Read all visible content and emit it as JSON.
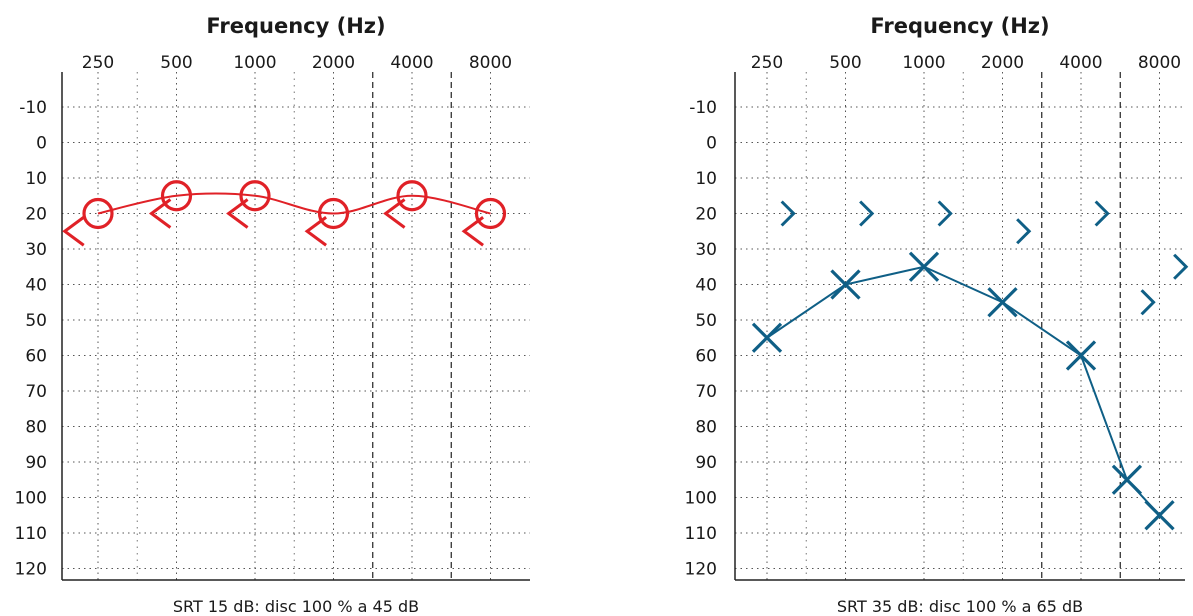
{
  "chart_data": [
    {
      "type": "scatter",
      "title": "Frequency (Hz)",
      "x_ticks": [
        "250",
        "500",
        "1000",
        "2000",
        "4000",
        "8000"
      ],
      "y_ticks": [
        "-10",
        "0",
        "10",
        "20",
        "30",
        "40",
        "50",
        "60",
        "70",
        "80",
        "90",
        "100",
        "110",
        "120"
      ],
      "ylim": [
        -15,
        120
      ],
      "y_inverted": true,
      "grid": true,
      "caption": "SRT 15 dB: disc 100 % a 45 dB",
      "color": "#e02127",
      "series": [
        {
          "symbol": "circle",
          "connected": true,
          "smooth": true,
          "points": [
            {
              "x": 250,
              "y": 20
            },
            {
              "x": 500,
              "y": 15
            },
            {
              "x": 1000,
              "y": 15
            },
            {
              "x": 2000,
              "y": 20
            },
            {
              "x": 4000,
              "y": 15
            },
            {
              "x": 8000,
              "y": 20
            }
          ]
        },
        {
          "symbol": "bracket-left",
          "connected": false,
          "points": [
            {
              "x": 200,
              "y": 25
            },
            {
              "x": 430,
              "y": 20
            },
            {
              "x": 850,
              "y": 20
            },
            {
              "x": 1700,
              "y": 25
            },
            {
              "x": 3400,
              "y": 20
            },
            {
              "x": 6800,
              "y": 25
            }
          ]
        }
      ]
    },
    {
      "type": "scatter",
      "title": "Frequency (Hz)",
      "x_ticks": [
        "250",
        "500",
        "1000",
        "2000",
        "4000",
        "8000"
      ],
      "y_ticks": [
        "-10",
        "0",
        "10",
        "20",
        "30",
        "40",
        "50",
        "60",
        "70",
        "80",
        "90",
        "100",
        "110",
        "120"
      ],
      "ylim": [
        -15,
        120
      ],
      "y_inverted": true,
      "grid": true,
      "caption": "SRT 35 dB: disc 100 % a 65 dB",
      "color": "#0f5f86",
      "series": [
        {
          "symbol": "x",
          "connected": true,
          "smooth": false,
          "points": [
            {
              "x": 250,
              "y": 55
            },
            {
              "x": 500,
              "y": 40
            },
            {
              "x": 1000,
              "y": 35
            },
            {
              "x": 2000,
              "y": 45
            },
            {
              "x": 4000,
              "y": 60
            },
            {
              "x": 6000,
              "y": 95
            },
            {
              "x": 8000,
              "y": 105
            }
          ]
        },
        {
          "symbol": "bracket-right",
          "connected": false,
          "points": [
            {
              "x": 300,
              "y": 20
            },
            {
              "x": 600,
              "y": 20
            },
            {
              "x": 1200,
              "y": 20
            },
            {
              "x": 2400,
              "y": 25
            },
            {
              "x": 4800,
              "y": 20
            },
            {
              "x": 7200,
              "y": 45
            },
            {
              "x": 9600,
              "y": 35
            }
          ]
        }
      ]
    }
  ]
}
